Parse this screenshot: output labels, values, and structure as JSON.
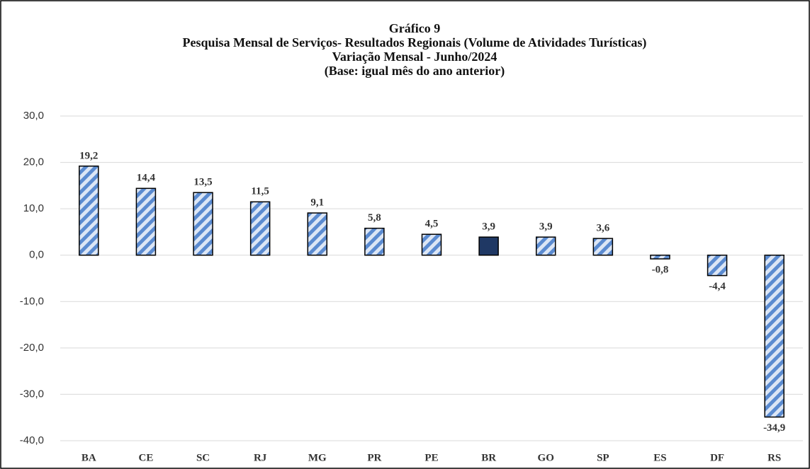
{
  "chart_data": {
    "type": "bar",
    "title": [
      "Gráfico 9",
      "Pesquisa Mensal de Serviços- Resultados Regionais (Volume de Atividades Turísticas)",
      "Variação Mensal - Junho/2024",
      "(Base: igual mês do ano anterior)"
    ],
    "categories": [
      "BA",
      "CE",
      "SC",
      "RJ",
      "MG",
      "PR",
      "PE",
      "BR",
      "GO",
      "SP",
      "ES",
      "DF",
      "RS"
    ],
    "values": [
      19.2,
      14.4,
      13.5,
      11.5,
      9.1,
      5.8,
      4.5,
      3.9,
      3.9,
      3.6,
      -0.8,
      -4.4,
      -34.9
    ],
    "value_labels": [
      "19,2",
      "14,4",
      "13,5",
      "11,5",
      "9,1",
      "5,8",
      "4,5",
      "3,9",
      "3,9",
      "3,6",
      "-0,8",
      "-4,4",
      "-34,9"
    ],
    "colors": [
      "#5b8bd0",
      "#5b8bd0",
      "#5b8bd0",
      "#5b8bd0",
      "#5b8bd0",
      "#5b8bd0",
      "#5b8bd0",
      "#1f3864",
      "#5b8bd0",
      "#5b8bd0",
      "#5b8bd0",
      "#5b8bd0",
      "#5b8bd0"
    ],
    "hatched": [
      true,
      true,
      true,
      true,
      true,
      true,
      true,
      false,
      true,
      true,
      true,
      true,
      true
    ],
    "ylim": [
      -40,
      30
    ],
    "yticks": [
      {
        "value": -40,
        "label": "-40,0"
      },
      {
        "value": -30,
        "label": "-30,0"
      },
      {
        "value": -20,
        "label": "-20,0"
      },
      {
        "value": -10,
        "label": "-10,0"
      },
      {
        "value": 0,
        "label": "0,0"
      },
      {
        "value": 10,
        "label": "10,0"
      },
      {
        "value": 20,
        "label": "20,0"
      },
      {
        "value": 30,
        "label": "30,0"
      }
    ],
    "grid": true
  }
}
